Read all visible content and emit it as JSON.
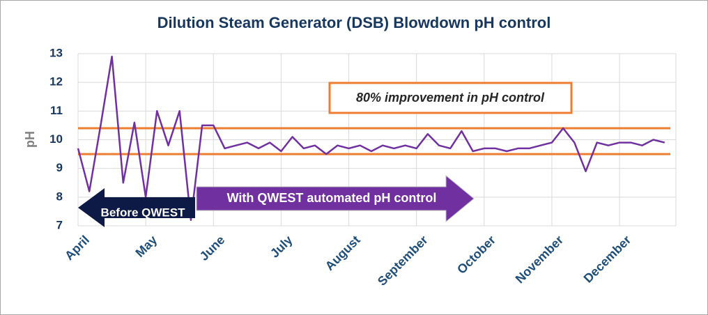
{
  "chart_data": {
    "type": "line",
    "title": "Dilution Steam Generator (DSB) Blowdown pH control",
    "y_label": "pH",
    "categories": [
      "April",
      null,
      null,
      null,
      null,
      null,
      "May",
      null,
      null,
      null,
      null,
      null,
      "June",
      null,
      null,
      null,
      null,
      null,
      "July",
      null,
      null,
      null,
      null,
      null,
      "August",
      null,
      null,
      null,
      null,
      null,
      "September",
      null,
      null,
      null,
      null,
      null,
      "October",
      null,
      null,
      null,
      null,
      null,
      "November",
      null,
      null,
      null,
      null,
      null,
      "December",
      null,
      null,
      null,
      null
    ],
    "series": [
      {
        "name": "pH",
        "color": "#7030a0",
        "values": [
          9.7,
          8.2,
          10.5,
          12.9,
          8.5,
          10.6,
          8.0,
          11.0,
          9.8,
          11.0,
          7.2,
          10.5,
          10.5,
          9.7,
          9.8,
          9.9,
          9.7,
          9.9,
          9.6,
          10.1,
          9.7,
          9.8,
          9.5,
          9.8,
          9.7,
          9.8,
          9.6,
          9.8,
          9.7,
          9.8,
          9.7,
          10.2,
          9.8,
          9.7,
          10.3,
          9.6,
          9.7,
          9.7,
          9.6,
          9.7,
          9.7,
          9.8,
          9.9,
          10.4,
          9.9,
          8.9,
          9.9,
          9.8,
          9.9,
          9.9,
          9.8,
          10.0,
          9.9
        ]
      }
    ],
    "reference_lines": [
      {
        "value": 10.4,
        "color": "#ed7d31"
      },
      {
        "value": 9.5,
        "color": "#ed7d31"
      }
    ],
    "ylim": [
      7,
      13
    ],
    "yticks": [
      7,
      8,
      9,
      10,
      11,
      12,
      13
    ],
    "grid": true,
    "annotations": {
      "improvement": "80% improvement in pH control",
      "before": "Before QWEST",
      "after": "With QWEST automated pH control"
    }
  }
}
